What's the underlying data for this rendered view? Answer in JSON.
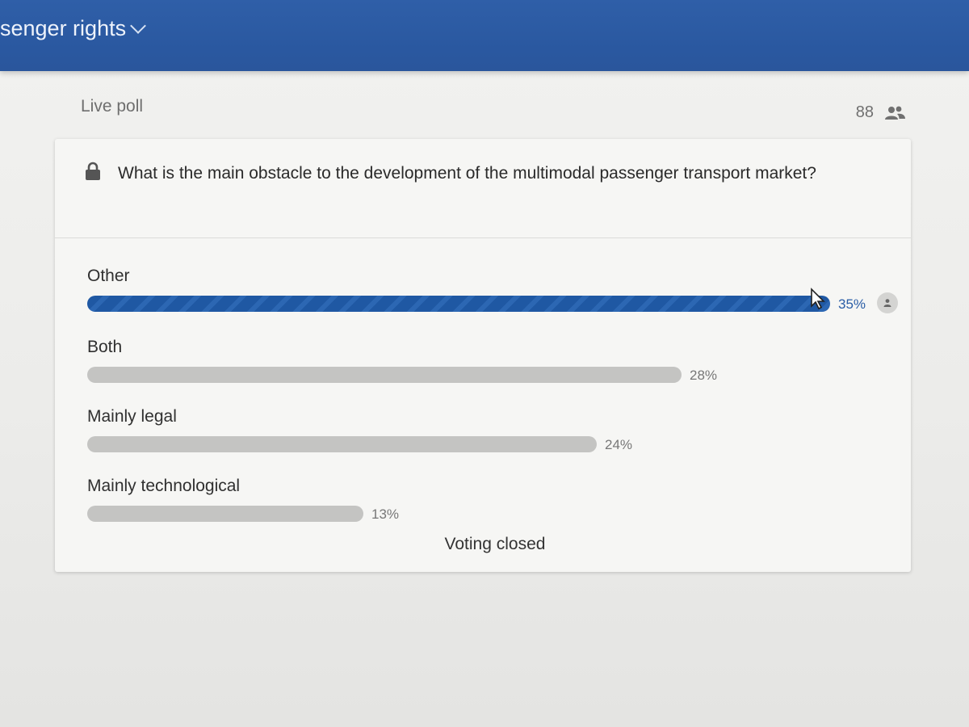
{
  "header": {
    "event_title": "senger rights"
  },
  "poll": {
    "label": "Live poll",
    "participant_count": "88",
    "question": "What is the main obstacle to the development of the multimodal passenger transport market?",
    "status": "Voting closed",
    "options": [
      {
        "label": "Other",
        "percent_text": "35%",
        "percent": 35,
        "leader": true
      },
      {
        "label": "Both",
        "percent_text": "28%",
        "percent": 28,
        "leader": false
      },
      {
        "label": "Mainly legal",
        "percent_text": "24%",
        "percent": 24,
        "leader": false
      },
      {
        "label": "Mainly technological",
        "percent_text": "13%",
        "percent": 13,
        "leader": false
      }
    ]
  },
  "icons": {
    "lock": "lock-icon",
    "participants": "people-icon",
    "voter": "person-icon",
    "dropdown": "chevron-down-icon",
    "cursor": "mouse-pointer-icon"
  },
  "colors": {
    "topbar": "#2f5fa8",
    "leader_bar": "#1f58a3",
    "bar": "#c4c4c2"
  }
}
